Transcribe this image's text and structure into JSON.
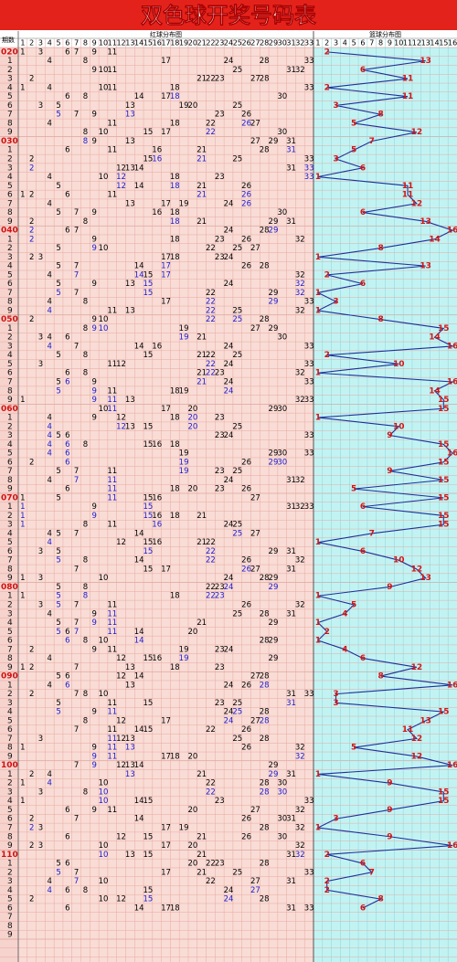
{
  "title": "双色球开奖号码表",
  "header": {
    "period_label": "期数",
    "red_label": "红球分布图",
    "blue_label": "篮球分布图",
    "red_columns": [
      1,
      2,
      3,
      4,
      5,
      6,
      7,
      8,
      9,
      10,
      11,
      12,
      13,
      14,
      15,
      16,
      17,
      18,
      19,
      20,
      21,
      22,
      23,
      24,
      25,
      26,
      27,
      28,
      29,
      30,
      31,
      32,
      33
    ],
    "blue_columns": [
      1,
      2,
      3,
      4,
      5,
      6,
      7,
      8,
      9,
      10,
      11,
      12,
      13,
      14,
      15,
      16
    ]
  },
  "rows": [
    {
      "period": "020",
      "red": [
        1,
        3,
        6,
        7,
        9,
        11
      ],
      "blue": 2
    },
    {
      "period": "1",
      "red": [
        4,
        8,
        17,
        24,
        28,
        33
      ],
      "blue": 13
    },
    {
      "period": "2",
      "red": [
        9,
        10,
        11,
        25,
        31,
        32
      ],
      "blue": 6
    },
    {
      "period": "3",
      "red": [
        2,
        21,
        22,
        23,
        27,
        28
      ],
      "blue": 11
    },
    {
      "period": "4",
      "red": [
        1,
        4,
        10,
        11,
        18,
        33
      ],
      "blue": 2
    },
    {
      "period": "5",
      "red": [
        6,
        8,
        14,
        17,
        18,
        30
      ],
      "blue": 11
    },
    {
      "period": "6",
      "red": [
        3,
        5,
        13,
        19,
        20,
        25
      ],
      "blue": 3
    },
    {
      "period": "7",
      "red": [
        5,
        7,
        9,
        13,
        23,
        26
      ],
      "blue": 8
    },
    {
      "period": "8",
      "red": [
        4,
        11,
        18,
        22,
        26,
        27
      ],
      "blue": 5
    },
    {
      "period": "9",
      "red": [
        8,
        10,
        15,
        17,
        22,
        30
      ],
      "blue": 12
    },
    {
      "period": "030",
      "red": [
        8,
        9,
        13,
        27,
        29,
        31
      ],
      "blue": 7
    },
    {
      "period": "1",
      "red": [
        6,
        11,
        16,
        21,
        28,
        31
      ],
      "blue": 5
    },
    {
      "period": "2",
      "red": [
        2,
        15,
        16,
        21,
        25,
        33
      ],
      "blue": 3
    },
    {
      "period": "3",
      "red": [
        2,
        12,
        13,
        14,
        31,
        33
      ],
      "blue": 6
    },
    {
      "period": "4",
      "red": [
        4,
        10,
        12,
        18,
        23,
        33
      ],
      "blue": 1
    },
    {
      "period": "5",
      "red": [
        5,
        12,
        14,
        18,
        21,
        26
      ],
      "blue": 11
    },
    {
      "period": "6",
      "red": [
        1,
        2,
        6,
        11,
        21,
        26
      ],
      "blue": 11
    },
    {
      "period": "7",
      "red": [
        4,
        13,
        17,
        19,
        24,
        26
      ],
      "blue": 12
    },
    {
      "period": "8",
      "red": [
        5,
        7,
        9,
        16,
        18,
        30
      ],
      "blue": 6
    },
    {
      "period": "9",
      "red": [
        2,
        8,
        18,
        21,
        29,
        31
      ],
      "blue": 13
    },
    {
      "period": "040",
      "red": [
        2,
        6,
        7,
        24,
        28,
        29
      ],
      "blue": 16
    },
    {
      "period": "1",
      "red": [
        2,
        9,
        18,
        23,
        26,
        32
      ],
      "blue": 14
    },
    {
      "period": "2",
      "red": [
        5,
        9,
        10,
        22,
        25,
        27
      ],
      "blue": 8
    },
    {
      "period": "3",
      "red": [
        2,
        3,
        17,
        18,
        23,
        24
      ],
      "blue": 1
    },
    {
      "period": "4",
      "red": [
        5,
        7,
        14,
        17,
        26,
        28
      ],
      "blue": 13
    },
    {
      "period": "5",
      "red": [
        4,
        7,
        14,
        15,
        17,
        32
      ],
      "blue": 2
    },
    {
      "period": "6",
      "red": [
        5,
        9,
        13,
        15,
        24,
        32
      ],
      "blue": 6
    },
    {
      "period": "7",
      "red": [
        5,
        7,
        15,
        22,
        29,
        32
      ],
      "blue": 1
    },
    {
      "period": "8",
      "red": [
        4,
        8,
        17,
        22,
        29,
        33
      ],
      "blue": 3
    },
    {
      "period": "9",
      "red": [
        4,
        11,
        13,
        22,
        25,
        32
      ],
      "blue": 1
    },
    {
      "period": "050",
      "red": [
        2,
        9,
        10,
        22,
        25,
        28
      ],
      "blue": 8
    },
    {
      "period": "1",
      "red": [
        8,
        9,
        10,
        19,
        27,
        29
      ],
      "blue": 15
    },
    {
      "period": "2",
      "red": [
        3,
        4,
        6,
        19,
        21,
        30
      ],
      "blue": 14
    },
    {
      "period": "3",
      "red": [
        4,
        7,
        14,
        16,
        24,
        33
      ],
      "blue": 16
    },
    {
      "period": "4",
      "red": [
        5,
        8,
        15,
        21,
        22,
        25
      ],
      "blue": 2
    },
    {
      "period": "5",
      "red": [
        3,
        11,
        12,
        22,
        24,
        33
      ],
      "blue": 10
    },
    {
      "period": "6",
      "red": [
        6,
        8,
        21,
        22,
        23,
        32
      ],
      "blue": 1
    },
    {
      "period": "7",
      "red": [
        5,
        6,
        9,
        21,
        24,
        33
      ],
      "blue": 16
    },
    {
      "period": "8",
      "red": [
        5,
        9,
        11,
        18,
        19,
        24
      ],
      "blue": 14
    },
    {
      "period": "9",
      "red": [
        1,
        9,
        11,
        13,
        32,
        33
      ],
      "blue": 15
    },
    {
      "period": "060",
      "red": [
        10,
        11,
        17,
        20,
        29,
        30
      ],
      "blue": 15
    },
    {
      "period": "1",
      "red": [
        4,
        9,
        12,
        18,
        20,
        23
      ],
      "blue": 1
    },
    {
      "period": "2",
      "red": [
        4,
        12,
        13,
        15,
        20,
        25
      ],
      "blue": 10
    },
    {
      "period": "3",
      "red": [
        4,
        5,
        6,
        23,
        24,
        33
      ],
      "blue": 9
    },
    {
      "period": "4",
      "red": [
        4,
        6,
        8,
        15,
        16,
        18
      ],
      "blue": 15
    },
    {
      "period": "5",
      "red": [
        4,
        6,
        19,
        29,
        30,
        33
      ],
      "blue": 16
    },
    {
      "period": "6",
      "red": [
        2,
        6,
        19,
        26,
        29,
        30
      ],
      "blue": 15
    },
    {
      "period": "7",
      "red": [
        5,
        7,
        11,
        19,
        23,
        25
      ],
      "blue": 9
    },
    {
      "period": "8",
      "red": [
        4,
        7,
        11,
        24,
        31,
        32
      ],
      "blue": 15
    },
    {
      "period": "9",
      "red": [
        6,
        11,
        18,
        20,
        23,
        26
      ],
      "blue": 5
    },
    {
      "period": "070",
      "red": [
        1,
        5,
        11,
        15,
        16,
        27
      ],
      "blue": 15
    },
    {
      "period": "1",
      "red": [
        1,
        9,
        15,
        31,
        32,
        33
      ],
      "blue": 6
    },
    {
      "period": "2",
      "red": [
        1,
        9,
        15,
        16,
        18,
        21
      ],
      "blue": 15
    },
    {
      "period": "3",
      "red": [
        1,
        8,
        11,
        16,
        24,
        25
      ],
      "blue": 15
    },
    {
      "period": "4",
      "red": [
        4,
        5,
        7,
        14,
        25,
        27
      ],
      "blue": 7
    },
    {
      "period": "5",
      "red": [
        4,
        12,
        15,
        16,
        21,
        22
      ],
      "blue": 1
    },
    {
      "period": "6",
      "red": [
        3,
        5,
        15,
        22,
        29,
        31
      ],
      "blue": 6
    },
    {
      "period": "7",
      "red": [
        5,
        8,
        14,
        22,
        26,
        32
      ],
      "blue": 10
    },
    {
      "period": "8",
      "red": [
        7,
        15,
        17,
        26,
        27,
        31
      ],
      "blue": 12
    },
    {
      "period": "9",
      "red": [
        1,
        3,
        10,
        24,
        28,
        29
      ],
      "blue": 13
    },
    {
      "period": "080",
      "red": [
        5,
        8,
        22,
        23,
        24,
        29
      ],
      "blue": 9
    },
    {
      "period": "1",
      "red": [
        1,
        5,
        8,
        18,
        22,
        23
      ],
      "blue": 1
    },
    {
      "period": "2",
      "red": [
        3,
        5,
        7,
        11,
        26,
        32
      ],
      "blue": 5
    },
    {
      "period": "3",
      "red": [
        4,
        9,
        11,
        25,
        28,
        31
      ],
      "blue": 4
    },
    {
      "period": "4",
      "red": [
        5,
        7,
        9,
        11,
        21,
        29
      ],
      "blue": 1
    },
    {
      "period": "5",
      "red": [
        5,
        6,
        7,
        11,
        14,
        20
      ],
      "blue": 2
    },
    {
      "period": "6",
      "red": [
        6,
        8,
        10,
        14,
        28,
        29
      ],
      "blue": 1
    },
    {
      "period": "7",
      "red": [
        2,
        9,
        11,
        19,
        23,
        24
      ],
      "blue": 4
    },
    {
      "period": "8",
      "red": [
        4,
        12,
        15,
        16,
        19,
        29
      ],
      "blue": 6
    },
    {
      "period": "9",
      "red": [
        1,
        2,
        7,
        13,
        18,
        23
      ],
      "blue": 12
    },
    {
      "period": "090",
      "red": [
        5,
        6,
        12,
        14,
        27,
        28
      ],
      "blue": 8
    },
    {
      "period": "1",
      "red": [
        4,
        6,
        13,
        24,
        26,
        28
      ],
      "blue": 16
    },
    {
      "period": "2",
      "red": [
        2,
        7,
        8,
        10,
        31,
        33
      ],
      "blue": 3
    },
    {
      "period": "3",
      "red": [
        5,
        11,
        15,
        23,
        25,
        31
      ],
      "blue": 3
    },
    {
      "period": "4",
      "red": [
        5,
        9,
        11,
        24,
        25,
        28
      ],
      "blue": 15
    },
    {
      "period": "5",
      "red": [
        8,
        12,
        17,
        24,
        27,
        28
      ],
      "blue": 13
    },
    {
      "period": "6",
      "red": [
        7,
        11,
        14,
        15,
        22,
        26
      ],
      "blue": 11
    },
    {
      "period": "7",
      "red": [
        3,
        11,
        12,
        13,
        25,
        28
      ],
      "blue": 12
    },
    {
      "period": "8",
      "red": [
        1,
        9,
        11,
        13,
        26,
        32
      ],
      "blue": 5
    },
    {
      "period": "9",
      "red": [
        9,
        11,
        17,
        18,
        20,
        32
      ],
      "blue": 12
    },
    {
      "period": "100",
      "red": [
        7,
        9,
        12,
        13,
        14,
        29
      ],
      "blue": 16
    },
    {
      "period": "1",
      "red": [
        2,
        4,
        13,
        21,
        29,
        31
      ],
      "blue": 1
    },
    {
      "period": "2",
      "red": [
        1,
        4,
        10,
        22,
        28,
        30
      ],
      "blue": 9
    },
    {
      "period": "3",
      "red": [
        3,
        8,
        10,
        22,
        28,
        30
      ],
      "blue": 15
    },
    {
      "period": "4",
      "red": [
        1,
        10,
        14,
        15,
        23,
        33
      ],
      "blue": 15
    },
    {
      "period": "5",
      "red": [
        6,
        9,
        11,
        20,
        27,
        32
      ],
      "blue": 9
    },
    {
      "period": "6",
      "red": [
        2,
        7,
        14,
        26,
        30,
        31
      ],
      "blue": 3
    },
    {
      "period": "7",
      "red": [
        2,
        3,
        17,
        19,
        28,
        32
      ],
      "blue": 1
    },
    {
      "period": "8",
      "red": [
        6,
        12,
        15,
        21,
        26,
        30
      ],
      "blue": 9
    },
    {
      "period": "9",
      "red": [
        2,
        3,
        10,
        17,
        20,
        32
      ],
      "blue": 16
    },
    {
      "period": "110",
      "red": [
        10,
        13,
        15,
        21,
        31,
        32
      ],
      "blue": 2
    },
    {
      "period": "1",
      "red": [
        5,
        6,
        20,
        22,
        23,
        28
      ],
      "blue": 6
    },
    {
      "period": "2",
      "red": [
        5,
        7,
        17,
        21,
        25,
        33
      ],
      "blue": 7
    },
    {
      "period": "3",
      "red": [
        4,
        7,
        10,
        22,
        27,
        31
      ],
      "blue": 2
    },
    {
      "period": "4",
      "red": [
        4,
        6,
        8,
        15,
        24,
        27
      ],
      "blue": 2
    },
    {
      "period": "5",
      "red": [
        2,
        10,
        12,
        15,
        24,
        28
      ],
      "blue": 8
    },
    {
      "period": "6",
      "red": [
        6,
        14,
        17,
        18,
        31,
        33
      ],
      "blue": 6
    },
    {
      "period": "7",
      "red": [],
      "blue": null
    },
    {
      "period": "8",
      "red": [],
      "blue": null
    },
    {
      "period": "9",
      "red": [],
      "blue": null
    }
  ]
}
